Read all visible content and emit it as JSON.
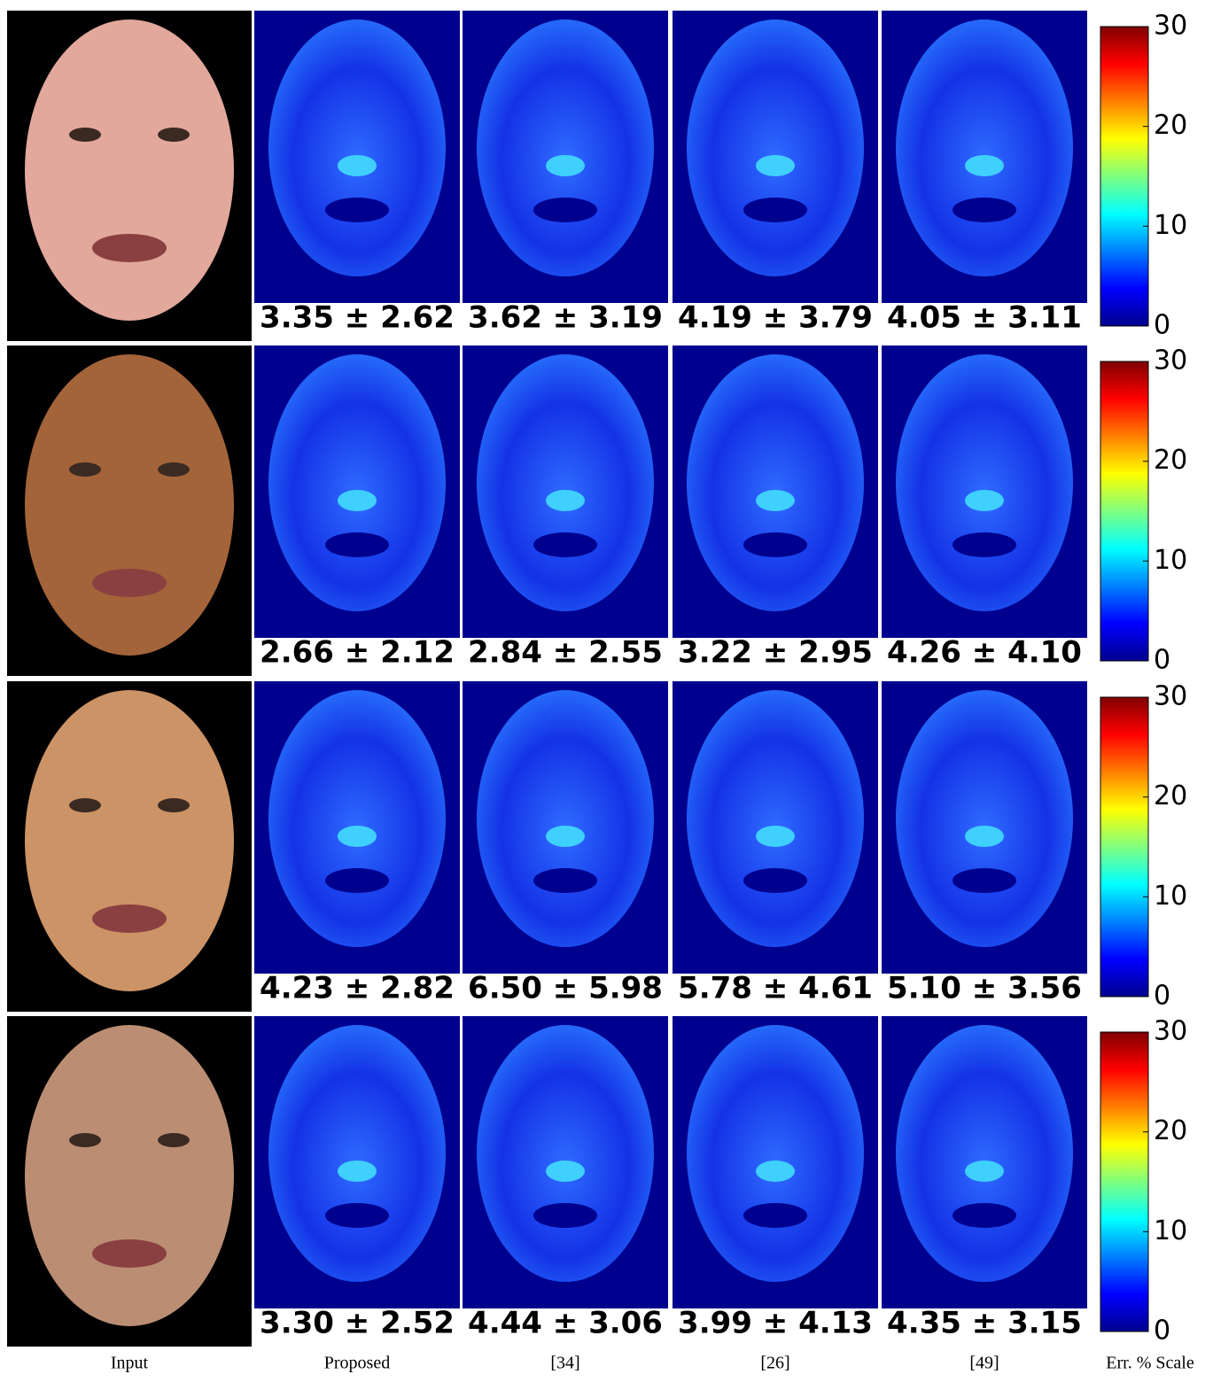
{
  "rows": [
    {
      "errors": [
        "3.35 ± 2.62",
        "3.62 ± 3.19",
        "4.19 ± 3.79",
        "4.05 ± 3.11"
      ]
    },
    {
      "errors": [
        "2.66 ± 2.12",
        "2.84 ± 2.55",
        "3.22 ± 2.95",
        "4.26 ± 4.10"
      ]
    },
    {
      "errors": [
        "4.23 ± 2.82",
        "6.50 ± 5.98",
        "5.78 ± 4.61",
        "5.10 ± 3.56"
      ]
    },
    {
      "errors": [
        "3.30 ± 2.52",
        "4.44 ± 3.06",
        "3.99 ± 4.13",
        "4.35 ± 3.15"
      ]
    }
  ],
  "columns": [
    "Input",
    "Proposed",
    "[34]",
    "[26]",
    "[49]",
    "Err. % Scale"
  ],
  "colorbar": {
    "lim": [
      0,
      30
    ],
    "ticks": [
      0,
      10,
      20,
      30
    ]
  }
}
